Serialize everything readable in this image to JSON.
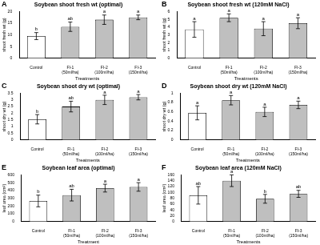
{
  "chart_data": [
    {
      "type": "bar",
      "panel_label": "A",
      "title": "Soybean shoot fresh wt (optimal)",
      "x_label": "Treatments",
      "y_label": "shoot fresh wt (g)",
      "categories": [
        "Control",
        "FI-1 (50ml/ha)",
        "FI-2 (100ml/ha)",
        "FI-3 (150ml/ha)"
      ],
      "values": [
        9.5,
        13.5,
        16.5,
        17.5
      ],
      "errors": [
        1.5,
        2,
        2,
        1
      ],
      "annotations": [
        "b",
        "ab",
        "a",
        "a"
      ],
      "colors": [
        "#ffffff",
        "#bfbfbf",
        "#bfbfbf",
        "#bfbfbf"
      ],
      "ylim": [
        0,
        20
      ],
      "yticks": [
        0,
        5,
        10,
        15,
        20
      ],
      "grid": false
    },
    {
      "type": "bar",
      "panel_label": "B",
      "title": "Soybean shoot fresh wt (120mM NaCl)",
      "x_label": "Treatments",
      "y_label": "shoot fresh wt (g)",
      "categories": [
        "Control",
        "FI-1 (50ml/ha)",
        "FI-2 (100ml/ha)",
        "FI-3 (150ml/ha)"
      ],
      "values": [
        3.7,
        5.2,
        3.8,
        4.5
      ],
      "errors": [
        1,
        0.5,
        0.9,
        0.7
      ],
      "annotations": [
        "a",
        "a",
        "a",
        "a"
      ],
      "colors": [
        "#ffffff",
        "#bfbfbf",
        "#bfbfbf",
        "#bfbfbf"
      ],
      "ylim": [
        0,
        6
      ],
      "yticks": [
        0,
        1,
        2,
        3,
        4,
        5,
        6
      ],
      "grid": false
    },
    {
      "type": "bar",
      "panel_label": "C",
      "title": "Soybean shoot dry wt (optimal)",
      "x_label": "Treatments",
      "y_label": "shoot dry wt (g)",
      "categories": [
        "Control",
        "FI-1 (50ml/ha)",
        "FI-2 (100ml/ha)",
        "FI-3 (150ml/ha)"
      ],
      "values": [
        1.55,
        2.5,
        3.0,
        3.2
      ],
      "errors": [
        0.35,
        0.4,
        0.35,
        0.2
      ],
      "annotations": [
        "b",
        "ab",
        "a",
        "a"
      ],
      "colors": [
        "#ffffff",
        "#bfbfbf",
        "#bfbfbf",
        "#bfbfbf"
      ],
      "ylim": [
        0,
        3.5
      ],
      "yticks": [
        0,
        0.5,
        1,
        1.5,
        2,
        2.5,
        3,
        3.5
      ],
      "grid": false
    },
    {
      "type": "bar",
      "panel_label": "D",
      "title": "Soybean shoot dry wt (120mM NaCl)",
      "x_label": "Treatments",
      "y_label": "shoot dry wt (g)",
      "categories": [
        "Control",
        "FI-1 (50ml/ha)",
        "FI-2 (100ml/ha)",
        "FI-3 (150ml/ha)"
      ],
      "values": [
        0.58,
        0.85,
        0.6,
        0.75
      ],
      "errors": [
        0.15,
        0.1,
        0.1,
        0.08
      ],
      "annotations": [
        "a",
        "a",
        "a",
        "a"
      ],
      "colors": [
        "#ffffff",
        "#bfbfbf",
        "#bfbfbf",
        "#bfbfbf"
      ],
      "ylim": [
        0,
        1
      ],
      "yticks": [
        0,
        0.2,
        0.4,
        0.6,
        0.8,
        1
      ],
      "grid": false
    },
    {
      "type": "bar",
      "panel_label": "E",
      "title": "Soybean leaf area (optimal)",
      "x_label": "Treatment",
      "y_label": "leaf area (cm²)",
      "categories": [
        "Control",
        "FI-1 (50ml/ha)",
        "FI-2 (100ml/ha)",
        "FI-3 (150ml/ha)"
      ],
      "values": [
        265,
        340,
        430,
        445
      ],
      "errors": [
        75,
        75,
        50,
        55
      ],
      "annotations": [
        "b",
        "ab",
        "a",
        "a"
      ],
      "colors": [
        "#ffffff",
        "#bfbfbf",
        "#bfbfbf",
        "#bfbfbf"
      ],
      "ylim": [
        0,
        600
      ],
      "yticks": [
        0,
        100,
        200,
        300,
        400,
        500,
        600
      ],
      "grid": false
    },
    {
      "type": "bar",
      "panel_label": "F",
      "title": "Soybean leaf area (120mM NaCl)",
      "x_label": "Treatments",
      "y_label": "leaf area (cm²)",
      "categories": [
        "Control",
        "FI-1 (50ml/ha)",
        "FI-2 (100ml/ha)",
        "FI-3 (150ml/ha)"
      ],
      "values": [
        90,
        140,
        78,
        95
      ],
      "errors": [
        30,
        20,
        15,
        12
      ],
      "annotations": [
        "ab",
        "a",
        "b",
        "ab"
      ],
      "colors": [
        "#ffffff",
        "#bfbfbf",
        "#bfbfbf",
        "#bfbfbf"
      ],
      "ylim": [
        0,
        160
      ],
      "yticks": [
        0,
        20,
        40,
        60,
        80,
        100,
        120,
        140,
        160
      ],
      "grid": false
    }
  ]
}
